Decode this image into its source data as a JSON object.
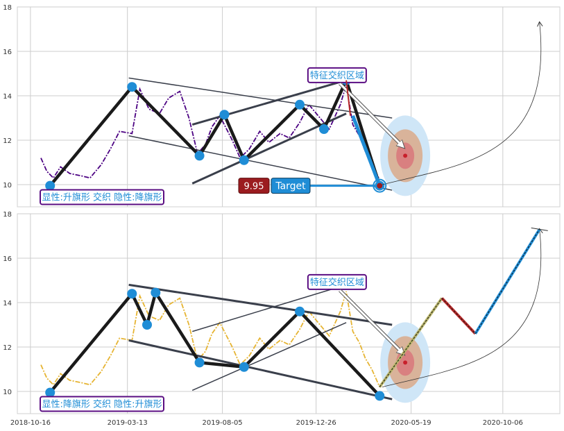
{
  "colors": {
    "plot_bg": "#ffffff",
    "grid": "#cccccc",
    "axis_text": "#333333",
    "price_top": "#4b0082",
    "price_bottom": "#e6b432",
    "zigzag": "#1a1a1a",
    "channel": "#3a3f4b",
    "pivot": "#1f8dd6",
    "label_border": "#5a0d82",
    "label_text": "#1f8dd6",
    "target_box": "#1f8dd6",
    "value_box": "#9b1c20",
    "zone_outer": "#cfe6f7",
    "zone_mid": "#d9b39a",
    "zone_inner": "#d98080",
    "zone_dot": "#c8202c",
    "proj_up": "#1f8dd6",
    "proj_down": "#b82a2a"
  },
  "x_ticks": [
    "2018-10-16",
    "2019-03-13",
    "2019-08-05",
    "2019-12-26",
    "2020-05-19",
    "2020-10-06"
  ],
  "chart_data": [
    {
      "type": "line",
      "panel": "top",
      "x_axis": "date",
      "x_range": [
        "2018-09-26",
        "2021-01-01"
      ],
      "ylim": [
        9,
        18
      ],
      "y_ticks": [
        10,
        12,
        14,
        16,
        18
      ],
      "grid": true,
      "series": [
        {
          "style": "dash-dot",
          "x": [
            "2018-11-01",
            "2018-11-10",
            "2018-11-20",
            "2018-12-01",
            "2018-12-15",
            "2019-01-01",
            "2019-01-15",
            "2019-02-01",
            "2019-02-15",
            "2019-03-01",
            "2019-03-20",
            "2019-04-01",
            "2019-04-15",
            "2019-05-01",
            "2019-05-15",
            "2019-06-01",
            "2019-06-15",
            "2019-06-28",
            "2019-07-10",
            "2019-07-20",
            "2019-08-01",
            "2019-08-20",
            "2019-09-01",
            "2019-09-15",
            "2019-10-01",
            "2019-10-15",
            "2019-11-01",
            "2019-11-15",
            "2019-12-01",
            "2019-12-15",
            "2020-01-01",
            "2020-01-15",
            "2020-02-01",
            "2020-02-10",
            "2020-02-20",
            "2020-03-01",
            "2020-03-10",
            "2020-03-20",
            "2020-04-01"
          ],
          "y": [
            11.2,
            10.6,
            10.3,
            10.8,
            10.5,
            10.4,
            10.3,
            10.9,
            11.6,
            12.4,
            12.3,
            14.3,
            13.4,
            13.2,
            13.9,
            14.2,
            13.0,
            11.4,
            11.8,
            12.6,
            13.1,
            12.0,
            11.2,
            11.6,
            12.4,
            11.9,
            12.3,
            12.1,
            12.8,
            13.6,
            13.0,
            12.5,
            13.6,
            14.5,
            12.7,
            12.2,
            11.5,
            11.0,
            10.2
          ]
        }
      ],
      "pivots": {
        "x": [
          "2018-11-15",
          "2019-03-20",
          "2019-07-01",
          "2019-08-08",
          "2019-09-07",
          "2019-12-01",
          "2020-01-07",
          "2020-02-10",
          "2020-04-01"
        ],
        "y": [
          9.95,
          14.4,
          11.3,
          13.15,
          11.1,
          13.6,
          12.5,
          14.7,
          9.95
        ]
      },
      "channels": [
        {
          "x": [
            "2019-03-15",
            "2020-04-20"
          ],
          "y": [
            14.8,
            13.0
          ]
        },
        {
          "x": [
            "2019-03-15",
            "2020-04-20"
          ],
          "y": [
            12.2,
            9.75
          ]
        },
        {
          "x": [
            "2019-06-20",
            "2020-02-10"
          ],
          "y": [
            12.7,
            14.7
          ]
        },
        {
          "x": [
            "2019-06-20",
            "2020-02-10"
          ],
          "y": [
            10.05,
            13.2
          ]
        }
      ],
      "annotations": {
        "feature_zone": "特征交织区域",
        "pattern": "显性:升旗形 交织 隐性:降旗形",
        "target_value": "9.95",
        "target_label": "Target"
      }
    },
    {
      "type": "line",
      "panel": "bottom",
      "x_axis": "date",
      "x_range": [
        "2018-09-26",
        "2021-01-01"
      ],
      "ylim": [
        9,
        18
      ],
      "y_ticks": [
        10,
        12,
        14,
        16,
        18
      ],
      "grid": true,
      "series": [
        {
          "style": "dash-dot",
          "x": [
            "2018-11-01",
            "2018-11-10",
            "2018-11-20",
            "2018-12-01",
            "2018-12-15",
            "2019-01-01",
            "2019-01-15",
            "2019-02-01",
            "2019-02-15",
            "2019-03-01",
            "2019-03-20",
            "2019-04-01",
            "2019-04-15",
            "2019-05-01",
            "2019-05-15",
            "2019-06-01",
            "2019-06-15",
            "2019-06-28",
            "2019-07-10",
            "2019-07-20",
            "2019-08-01",
            "2019-08-20",
            "2019-09-01",
            "2019-09-15",
            "2019-10-01",
            "2019-10-15",
            "2019-11-01",
            "2019-11-15",
            "2019-12-01",
            "2019-12-15",
            "2020-01-01",
            "2020-01-15",
            "2020-02-01",
            "2020-02-10",
            "2020-02-20",
            "2020-03-01",
            "2020-03-10",
            "2020-03-20",
            "2020-04-01"
          ],
          "y": [
            11.2,
            10.6,
            10.3,
            10.8,
            10.5,
            10.4,
            10.3,
            10.9,
            11.6,
            12.4,
            12.3,
            14.3,
            13.4,
            13.2,
            13.9,
            14.2,
            13.0,
            11.4,
            11.8,
            12.6,
            13.1,
            12.0,
            11.2,
            11.6,
            12.4,
            11.9,
            12.3,
            12.1,
            12.8,
            13.6,
            13.0,
            12.5,
            13.6,
            14.5,
            12.7,
            12.2,
            11.5,
            11.0,
            10.2
          ]
        }
      ],
      "pivots": {
        "x": [
          "2018-11-15",
          "2019-03-20",
          "2019-04-12",
          "2019-04-25",
          "2019-07-01",
          "2019-09-07",
          "2019-12-01",
          "2020-04-01"
        ],
        "y": [
          9.95,
          14.4,
          13.0,
          14.45,
          11.3,
          11.1,
          13.6,
          9.8
        ]
      },
      "channels": [
        {
          "x": [
            "2019-03-15",
            "2020-04-20"
          ],
          "y": [
            14.8,
            13.0
          ]
        },
        {
          "x": [
            "2019-03-15",
            "2020-04-20"
          ],
          "y": [
            12.3,
            9.65
          ]
        },
        {
          "x": [
            "2019-06-20",
            "2020-02-10"
          ],
          "y": [
            12.7,
            14.8
          ]
        },
        {
          "x": [
            "2019-06-20",
            "2020-02-10"
          ],
          "y": [
            10.05,
            13.1
          ]
        }
      ],
      "projection": {
        "x": [
          "2020-04-01",
          "2020-07-05",
          "2020-08-25",
          "2020-12-01"
        ],
        "y": [
          10.2,
          14.2,
          12.6,
          17.3
        ]
      },
      "annotations": {
        "feature_zone": "特征交织区域",
        "pattern": "显性:降旗形 交织 隐性:升旗形"
      }
    }
  ]
}
